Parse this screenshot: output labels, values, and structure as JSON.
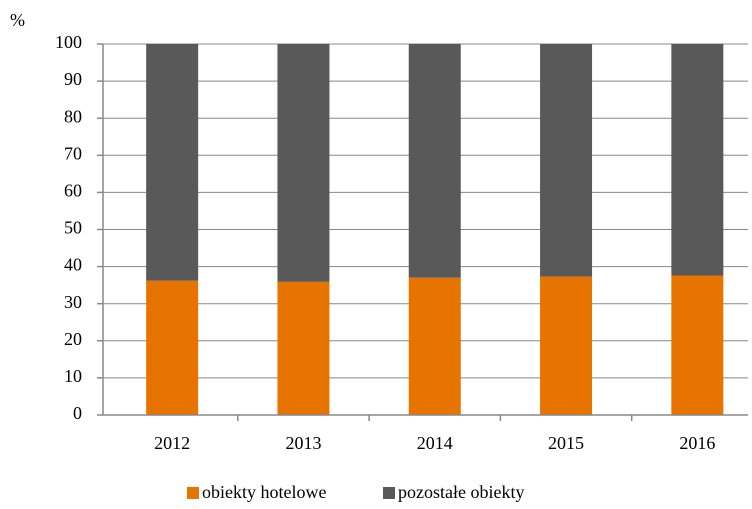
{
  "chart_data": {
    "type": "bar",
    "stacked": true,
    "y_axis_label": "%",
    "categories": [
      "2012",
      "2013",
      "2014",
      "2015",
      "2016"
    ],
    "series": [
      {
        "name": "obiekty hotelowe",
        "color": "#e87400",
        "values": [
          36.2,
          35.9,
          37.0,
          37.3,
          37.6
        ]
      },
      {
        "name": "pozostałe obiekty",
        "color": "#595959",
        "values": [
          63.8,
          64.1,
          63.0,
          62.7,
          62.4
        ]
      }
    ],
    "ylim": [
      0,
      100
    ],
    "yticks": [
      0,
      10,
      20,
      30,
      40,
      50,
      60,
      70,
      80,
      90,
      100
    ],
    "grid": true,
    "legend": "bottom"
  }
}
